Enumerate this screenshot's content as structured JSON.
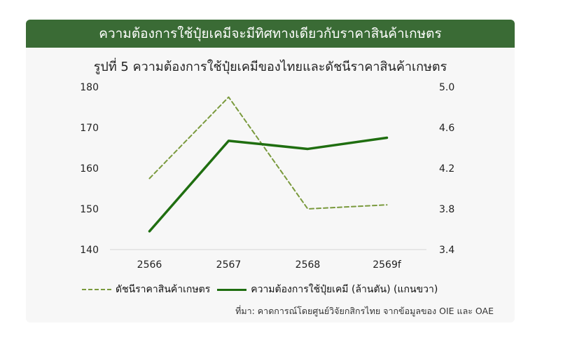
{
  "banner": {
    "title": "ความต้องการใช้ปุ๋ยเคมีจะมีทิศทางเดียวกับราคาสินค้าเกษตร"
  },
  "chart_data": {
    "type": "line",
    "title": "รูปที่ 5 ความต้องการใช้ปุ๋ยเคมีของไทยและดัชนีราคาสินค้าเกษตร",
    "categories": [
      "2566",
      "2567",
      "2568",
      "2569f"
    ],
    "series": [
      {
        "name": "ดัชนีราคาสินค้าเกษตร",
        "axis": "left",
        "style": "dashed",
        "color": "#7a9a3d",
        "values": [
          157.5,
          177.5,
          150.0,
          151.0
        ]
      },
      {
        "name": "ความต้องการใช้ปุ๋ยเคมี (ล้านตัน) (แกนขวา)",
        "axis": "right",
        "style": "solid",
        "color": "#1f6e10",
        "values": [
          3.58,
          4.47,
          4.39,
          4.5
        ]
      }
    ],
    "y_left": {
      "min": 140,
      "max": 180,
      "ticks": [
        "140",
        "150",
        "160",
        "170",
        "180"
      ]
    },
    "y_right": {
      "min": 3.4,
      "max": 5.0,
      "ticks": [
        "3.4",
        "3.8",
        "4.2",
        "4.6",
        "5.0"
      ]
    },
    "grid": false,
    "legend_position": "bottom"
  },
  "source": "ที่มา: คาดการณ์โดยศูนย์วิจัยกสิกรไทย จากข้อมูลของ OIE และ OAE"
}
